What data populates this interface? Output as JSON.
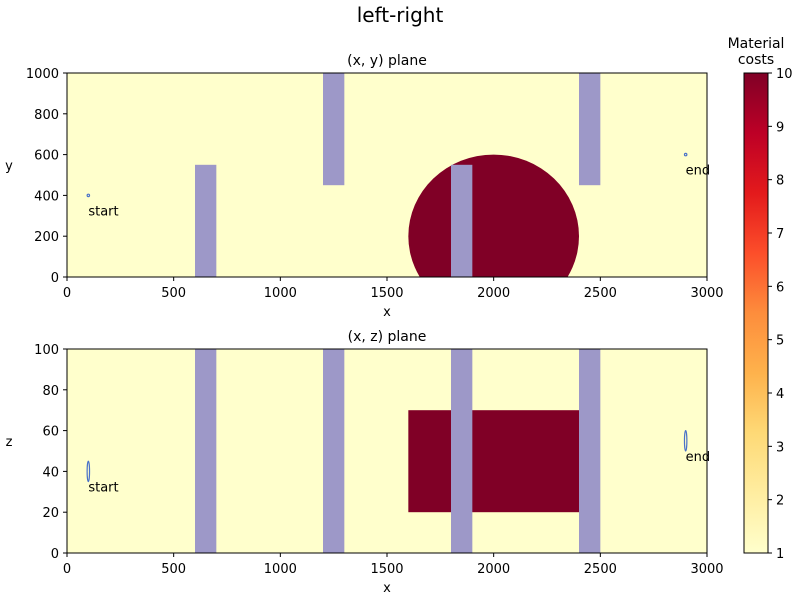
{
  "chart_data": {
    "type": "heatmap",
    "title": "left-right",
    "colorbar": {
      "label_line1": "Material",
      "label_line2": "costs",
      "range": [
        1,
        10
      ],
      "ticks": [
        "1",
        "2",
        "3",
        "4",
        "5",
        "6",
        "7",
        "8",
        "9",
        "10"
      ],
      "colors": [
        "#ffffcc",
        "#ffeda0",
        "#fed976",
        "#feb24c",
        "#fd8d3c",
        "#fc4e2a",
        "#e31a1c",
        "#bd0026",
        "#800026"
      ]
    },
    "colors": {
      "background": "#ffffcc",
      "high_cost": "#800026",
      "obstacle": "#9d98c8",
      "marker": "#4a72c8"
    },
    "panels": [
      {
        "id": "xy",
        "title": "(x, y) plane",
        "xlabel": "x",
        "ylabel": "y",
        "xlim": [
          0,
          3000
        ],
        "ylim": [
          0,
          1000
        ],
        "xticks": [
          "0",
          "500",
          "1000",
          "1500",
          "2000",
          "2500",
          "3000"
        ],
        "yticks": [
          "0",
          "200",
          "400",
          "600",
          "800",
          "1000"
        ],
        "high_cost_circle": {
          "cx": 2000,
          "cy": 200,
          "r": 400,
          "cost": 10
        },
        "obstacles": [
          {
            "x0": 600,
            "x1": 700,
            "y0": 0,
            "y1": 550
          },
          {
            "x0": 1200,
            "x1": 1300,
            "y0": 450,
            "y1": 1000
          },
          {
            "x0": 1800,
            "x1": 1900,
            "y0": 0,
            "y1": 550
          },
          {
            "x0": 2400,
            "x1": 2500,
            "y0": 450,
            "y1": 1000
          }
        ],
        "points": [
          {
            "label": "start",
            "x": 100,
            "y": 400,
            "rx": 5,
            "ry": 5
          },
          {
            "label": "end",
            "x": 2900,
            "y": 600,
            "rx": 5,
            "ry": 5
          }
        ]
      },
      {
        "id": "xz",
        "title": "(x, z) plane",
        "xlabel": "x",
        "ylabel": "z",
        "xlim": [
          0,
          3000
        ],
        "ylim": [
          0,
          100
        ],
        "xticks": [
          "0",
          "500",
          "1000",
          "1500",
          "2000",
          "2500",
          "3000"
        ],
        "yticks": [
          "0",
          "20",
          "40",
          "60",
          "80",
          "100"
        ],
        "high_cost_rect": {
          "x0": 1600,
          "x1": 2400,
          "y0": 20,
          "y1": 70,
          "cost": 10
        },
        "obstacles": [
          {
            "x0": 600,
            "x1": 700,
            "y0": 0,
            "y1": 100
          },
          {
            "x0": 1200,
            "x1": 1300,
            "y0": 0,
            "y1": 100
          },
          {
            "x0": 1800,
            "x1": 1900,
            "y0": 0,
            "y1": 100
          },
          {
            "x0": 2400,
            "x1": 2500,
            "y0": 0,
            "y1": 100
          }
        ],
        "points": [
          {
            "label": "start",
            "x": 100,
            "y": 40,
            "rx": 5,
            "ry": 5
          },
          {
            "label": "end",
            "x": 2900,
            "y": 55,
            "rx": 5,
            "ry": 5
          }
        ]
      }
    ]
  }
}
